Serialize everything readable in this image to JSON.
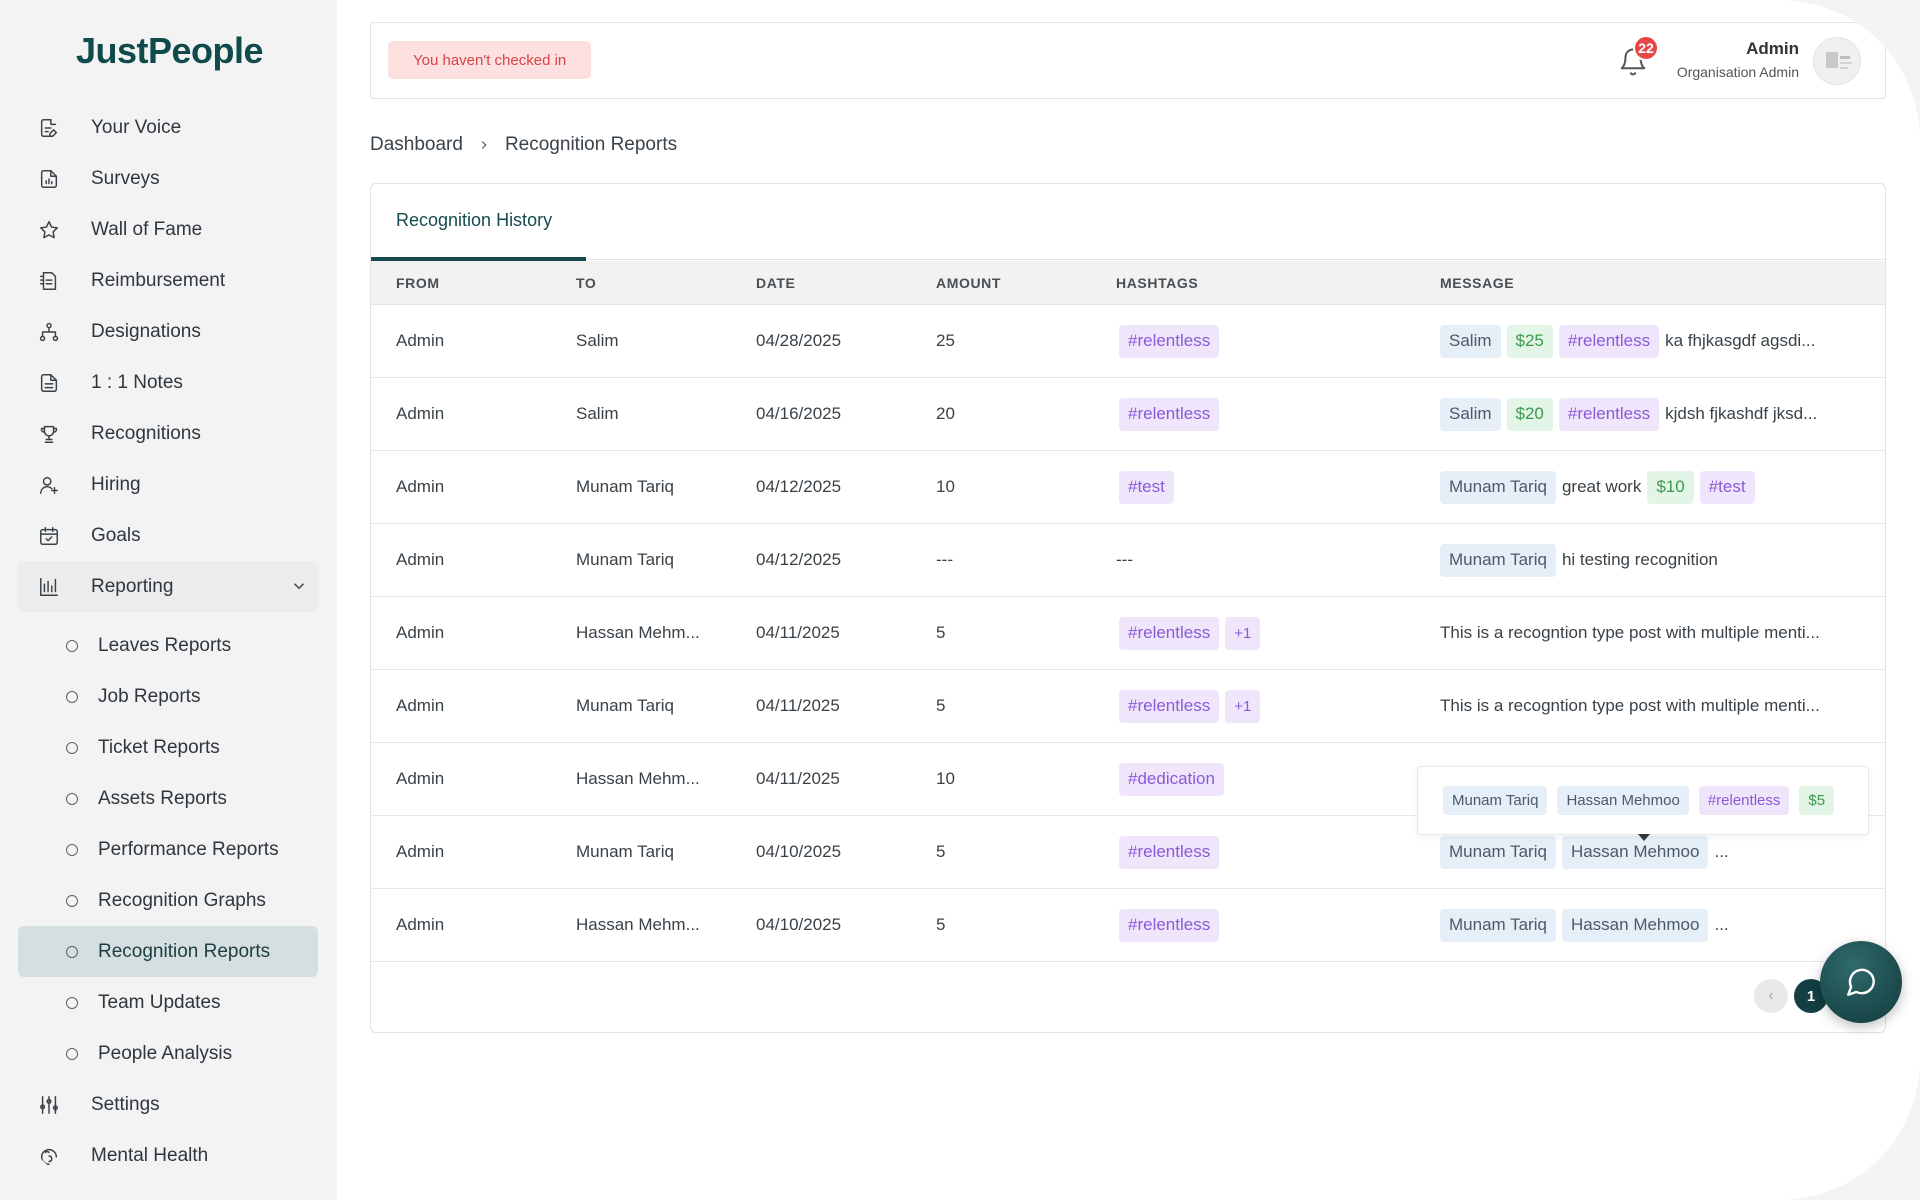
{
  "app": {
    "logo": "JustPeople"
  },
  "sidebar": {
    "items": [
      {
        "label": "Your Voice",
        "icon": "document-edit-icon"
      },
      {
        "label": "Surveys",
        "icon": "survey-document-icon"
      },
      {
        "label": "Wall of Fame",
        "icon": "star-icon"
      },
      {
        "label": "Reimbursement",
        "icon": "receipt-icon"
      },
      {
        "label": "Designations",
        "icon": "hierarchy-icon"
      },
      {
        "label": "1 : 1 Notes",
        "icon": "notes-icon"
      },
      {
        "label": "Recognitions",
        "icon": "trophy-icon"
      },
      {
        "label": "Hiring",
        "icon": "user-add-icon"
      },
      {
        "label": "Goals",
        "icon": "calendar-check-icon"
      },
      {
        "label": "Reporting",
        "icon": "bar-chart-icon"
      }
    ],
    "reporting_sub": [
      {
        "label": "Leaves Reports"
      },
      {
        "label": "Job Reports"
      },
      {
        "label": "Ticket Reports"
      },
      {
        "label": "Assets Reports"
      },
      {
        "label": "Performance Reports"
      },
      {
        "label": "Recognition Graphs"
      },
      {
        "label": "Recognition Reports",
        "active": true
      },
      {
        "label": "Team Updates"
      },
      {
        "label": "People Analysis"
      }
    ],
    "bottom_items": [
      {
        "label": "Settings",
        "icon": "sliders-icon"
      },
      {
        "label": "Mental Health",
        "icon": "brain-icon"
      }
    ]
  },
  "topbar": {
    "checkin_text": "You haven't checked in",
    "notification_count": "22",
    "user_name": "Admin",
    "user_role": "Organisation Admin"
  },
  "breadcrumb": {
    "root": "Dashboard",
    "current": "Recognition Reports"
  },
  "tab": {
    "label": "Recognition History"
  },
  "table": {
    "headers": {
      "from": "FROM",
      "to": "TO",
      "date": "DATE",
      "amount": "AMOUNT",
      "hashtags": "HASHTAGS",
      "message": "MESSAGE"
    },
    "rows": [
      {
        "from": "Admin",
        "to": "Salim",
        "date": "04/28/2025",
        "amount": "25",
        "hashtags": [
          "#relentless"
        ],
        "hashtag_extra": "",
        "message": [
          {
            "t": "tag",
            "c": "blue",
            "v": "Salim"
          },
          {
            "t": "tag",
            "c": "green",
            "v": "$25"
          },
          {
            "t": "tag",
            "c": "purple",
            "v": "#relentless"
          },
          {
            "t": "text",
            "v": "ka fhjkasgdf agsdi..."
          }
        ]
      },
      {
        "from": "Admin",
        "to": "Salim",
        "date": "04/16/2025",
        "amount": "20",
        "hashtags": [
          "#relentless"
        ],
        "hashtag_extra": "",
        "message": [
          {
            "t": "tag",
            "c": "blue",
            "v": "Salim"
          },
          {
            "t": "tag",
            "c": "green",
            "v": "$20"
          },
          {
            "t": "tag",
            "c": "purple",
            "v": "#relentless"
          },
          {
            "t": "text",
            "v": "kjdsh fjkashdf jksd..."
          }
        ]
      },
      {
        "from": "Admin",
        "to": "Munam Tariq",
        "date": "04/12/2025",
        "amount": "10",
        "hashtags": [
          "#test"
        ],
        "hashtag_extra": "",
        "message": [
          {
            "t": "tag",
            "c": "blue",
            "v": "Munam Tariq"
          },
          {
            "t": "text",
            "v": "great work"
          },
          {
            "t": "tag",
            "c": "green",
            "v": "$10"
          },
          {
            "t": "tag",
            "c": "purple",
            "v": "#test"
          }
        ]
      },
      {
        "from": "Admin",
        "to": "Munam Tariq",
        "date": "04/12/2025",
        "amount": "---",
        "hashtags": [],
        "hashtag_text": "---",
        "hashtag_extra": "",
        "message": [
          {
            "t": "tag",
            "c": "blue",
            "v": "Munam Tariq"
          },
          {
            "t": "text",
            "v": "hi testing recognition"
          }
        ]
      },
      {
        "from": "Admin",
        "to": "Hassan Mehm...",
        "date": "04/11/2025",
        "amount": "5",
        "hashtags": [
          "#relentless"
        ],
        "hashtag_extra": "+1",
        "message": [
          {
            "t": "text",
            "v": "This is a recogntion type post with multiple menti..."
          }
        ]
      },
      {
        "from": "Admin",
        "to": "Munam Tariq",
        "date": "04/11/2025",
        "amount": "5",
        "hashtags": [
          "#relentless"
        ],
        "hashtag_extra": "+1",
        "message": [
          {
            "t": "text",
            "v": "This is a recogntion type post with multiple menti..."
          }
        ]
      },
      {
        "from": "Admin",
        "to": "Hassan Mehm...",
        "date": "04/11/2025",
        "amount": "10",
        "hashtags": [
          "#dedication"
        ],
        "hashtag_extra": "",
        "message": []
      },
      {
        "from": "Admin",
        "to": "Munam Tariq",
        "date": "04/10/2025",
        "amount": "5",
        "hashtags": [
          "#relentless"
        ],
        "hashtag_extra": "",
        "message": [
          {
            "t": "tag",
            "c": "blue",
            "v": "Munam Tariq"
          },
          {
            "t": "tag",
            "c": "blue",
            "v": "Hassan Mehmoo"
          },
          {
            "t": "text",
            "v": "..."
          }
        ]
      },
      {
        "from": "Admin",
        "to": "Hassan Mehm...",
        "date": "04/10/2025",
        "amount": "5",
        "hashtags": [
          "#relentless"
        ],
        "hashtag_extra": "",
        "message": [
          {
            "t": "tag",
            "c": "blue",
            "v": "Munam Tariq"
          },
          {
            "t": "tag",
            "c": "blue",
            "v": "Hassan Mehmoo"
          },
          {
            "t": "text",
            "v": "..."
          }
        ]
      }
    ]
  },
  "tooltip": {
    "tags": [
      {
        "c": "blue",
        "v": "Munam Tariq"
      },
      {
        "c": "blue",
        "v": "Hassan Mehmoo"
      },
      {
        "c": "purple",
        "v": "#relentless"
      },
      {
        "c": "green",
        "v": "$5"
      }
    ]
  },
  "pagination": {
    "current": "1",
    "prev_symbol": "‹"
  },
  "colors": {
    "brand": "#0f4a4c",
    "active_bg": "#d5dfe0",
    "purple_tag": "#8a5ad8",
    "green_tag": "#3a9a4e",
    "alert_bg": "#fde0e0"
  }
}
